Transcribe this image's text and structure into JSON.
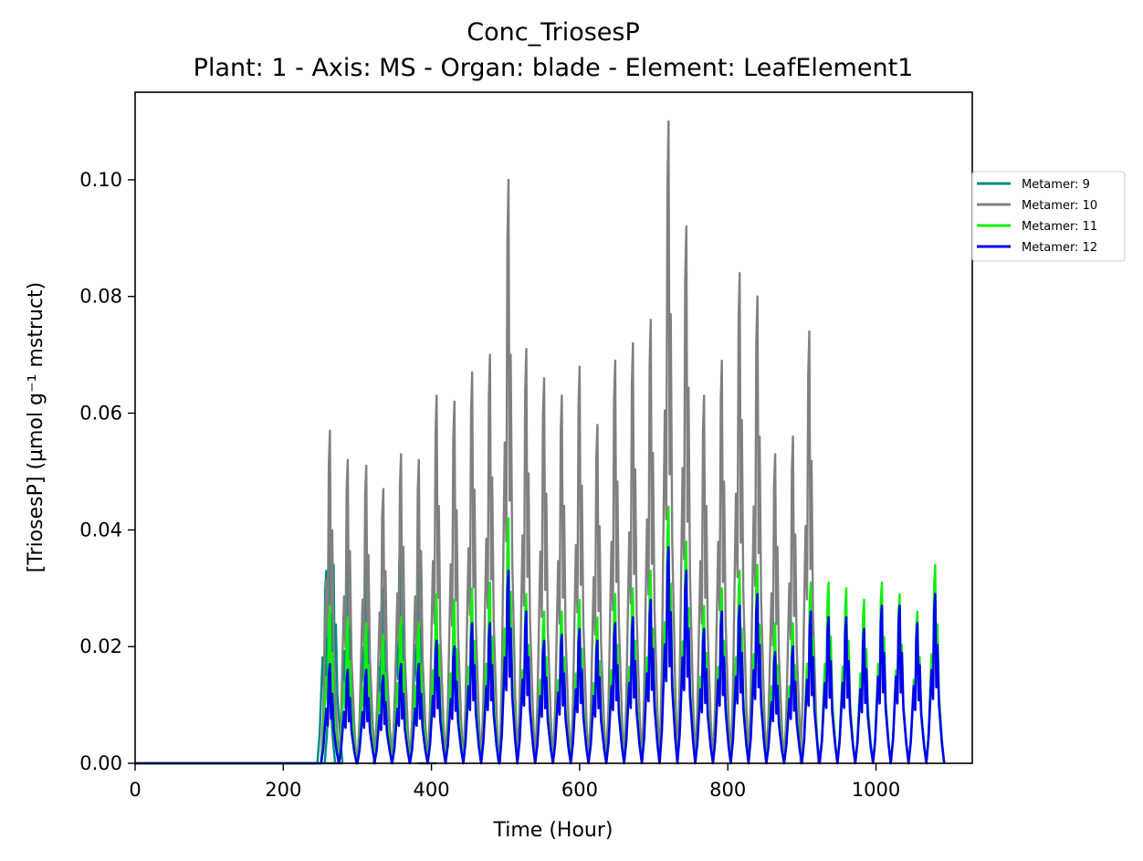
{
  "chart_data": {
    "type": "line",
    "title": "Conc_TriosesP",
    "subtitle": "Plant: 1 - Axis: MS - Organ: blade - Element: LeafElement1",
    "xlabel": "Time (Hour)",
    "ylabel": "[TriosesP] (µmol g⁻¹ mstruct)",
    "xlim": [
      0,
      1130
    ],
    "ylim": [
      0,
      0.115
    ],
    "xticks": [
      "0",
      "200",
      "400",
      "600",
      "800",
      "1000"
    ],
    "yticks": [
      "0.00",
      "0.02",
      "0.04",
      "0.06",
      "0.08",
      "0.10"
    ],
    "grid": false,
    "legend_position": "outside right",
    "series": [
      {
        "name": "Metamer: 9",
        "color": "#008b80",
        "x": [
          258,
          263,
          268,
          287,
          312,
          334,
          358,
          383,
          395
        ],
        "peaks": [
          0.033,
          0.038,
          0.034,
          0.035,
          0.036,
          0.03,
          0.038,
          0.037,
          0.0
        ]
      },
      {
        "name": "Metamer: 10",
        "color": "#808080",
        "x": [
          263,
          287,
          312,
          335,
          359,
          383,
          407,
          431,
          455,
          479,
          504,
          528,
          552,
          576,
          600,
          624,
          648,
          672,
          696,
          720,
          744,
          768,
          792,
          816,
          840,
          864,
          888,
          910
        ],
        "peaks": [
          0.057,
          0.052,
          0.051,
          0.047,
          0.053,
          0.052,
          0.063,
          0.062,
          0.067,
          0.07,
          0.1,
          0.071,
          0.066,
          0.063,
          0.068,
          0.058,
          0.069,
          0.072,
          0.076,
          0.11,
          0.092,
          0.063,
          0.069,
          0.084,
          0.08,
          0.053,
          0.056,
          0.074
        ]
      },
      {
        "name": "Metamer: 11",
        "color": "#10ee10",
        "x": [
          263,
          287,
          312,
          335,
          359,
          383,
          407,
          431,
          455,
          479,
          504,
          528,
          552,
          576,
          600,
          624,
          648,
          672,
          696,
          720,
          744,
          768,
          792,
          816,
          840,
          864,
          888,
          912,
          936,
          960,
          984,
          1008,
          1032,
          1056,
          1080
        ],
        "peaks": [
          0.027,
          0.025,
          0.024,
          0.022,
          0.025,
          0.024,
          0.029,
          0.028,
          0.03,
          0.031,
          0.042,
          0.029,
          0.026,
          0.026,
          0.028,
          0.025,
          0.029,
          0.03,
          0.033,
          0.044,
          0.038,
          0.027,
          0.03,
          0.033,
          0.034,
          0.024,
          0.024,
          0.031,
          0.031,
          0.03,
          0.028,
          0.031,
          0.029,
          0.026,
          0.034
        ]
      },
      {
        "name": "Metamer: 12",
        "color": "#0000ee",
        "x": [
          263,
          287,
          312,
          335,
          359,
          383,
          407,
          431,
          455,
          479,
          504,
          528,
          552,
          576,
          600,
          624,
          648,
          672,
          696,
          720,
          744,
          768,
          792,
          816,
          840,
          864,
          888,
          912,
          936,
          960,
          984,
          1008,
          1032,
          1056,
          1080
        ],
        "peaks": [
          0.017,
          0.016,
          0.016,
          0.015,
          0.017,
          0.017,
          0.021,
          0.02,
          0.024,
          0.024,
          0.033,
          0.026,
          0.021,
          0.022,
          0.023,
          0.021,
          0.024,
          0.025,
          0.028,
          0.037,
          0.033,
          0.023,
          0.026,
          0.027,
          0.029,
          0.019,
          0.02,
          0.026,
          0.025,
          0.025,
          0.023,
          0.027,
          0.027,
          0.024,
          0.029
        ]
      }
    ]
  }
}
